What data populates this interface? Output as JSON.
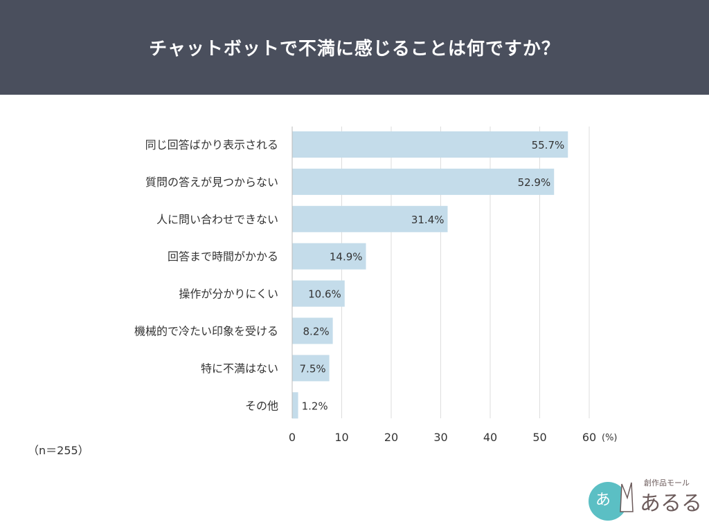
{
  "header": {
    "title": "チャットボットで不満に感じることは何ですか？"
  },
  "note": "（n＝255）",
  "logo": {
    "text": "創作品モール あるる"
  },
  "colors": {
    "header": "#4a4f5d",
    "bar": "#c4dcea",
    "text": "#333333",
    "grid": "#dddddd"
  },
  "chart_data": {
    "type": "bar",
    "orientation": "horizontal",
    "categories": [
      "同じ回答ばかり表示される",
      "質問の答えが見つからない",
      "人に問い合わせできない",
      "回答まで時間がかかる",
      "操作が分かりにくい",
      "機械的で冷たい印象を受ける",
      "特に不満はない",
      "その他"
    ],
    "values": [
      55.7,
      52.9,
      31.4,
      14.9,
      10.6,
      8.2,
      7.5,
      1.2
    ],
    "data_labels": [
      "55.7%",
      "52.9%",
      "31.4%",
      "14.9%",
      "10.6%",
      "8.2%",
      "7.5%",
      "1.2%"
    ],
    "xlim": [
      0,
      60
    ],
    "xticks": [
      "0",
      "10",
      "20",
      "30",
      "40",
      "50",
      "60"
    ],
    "xunit": "(%)",
    "grid": true
  }
}
